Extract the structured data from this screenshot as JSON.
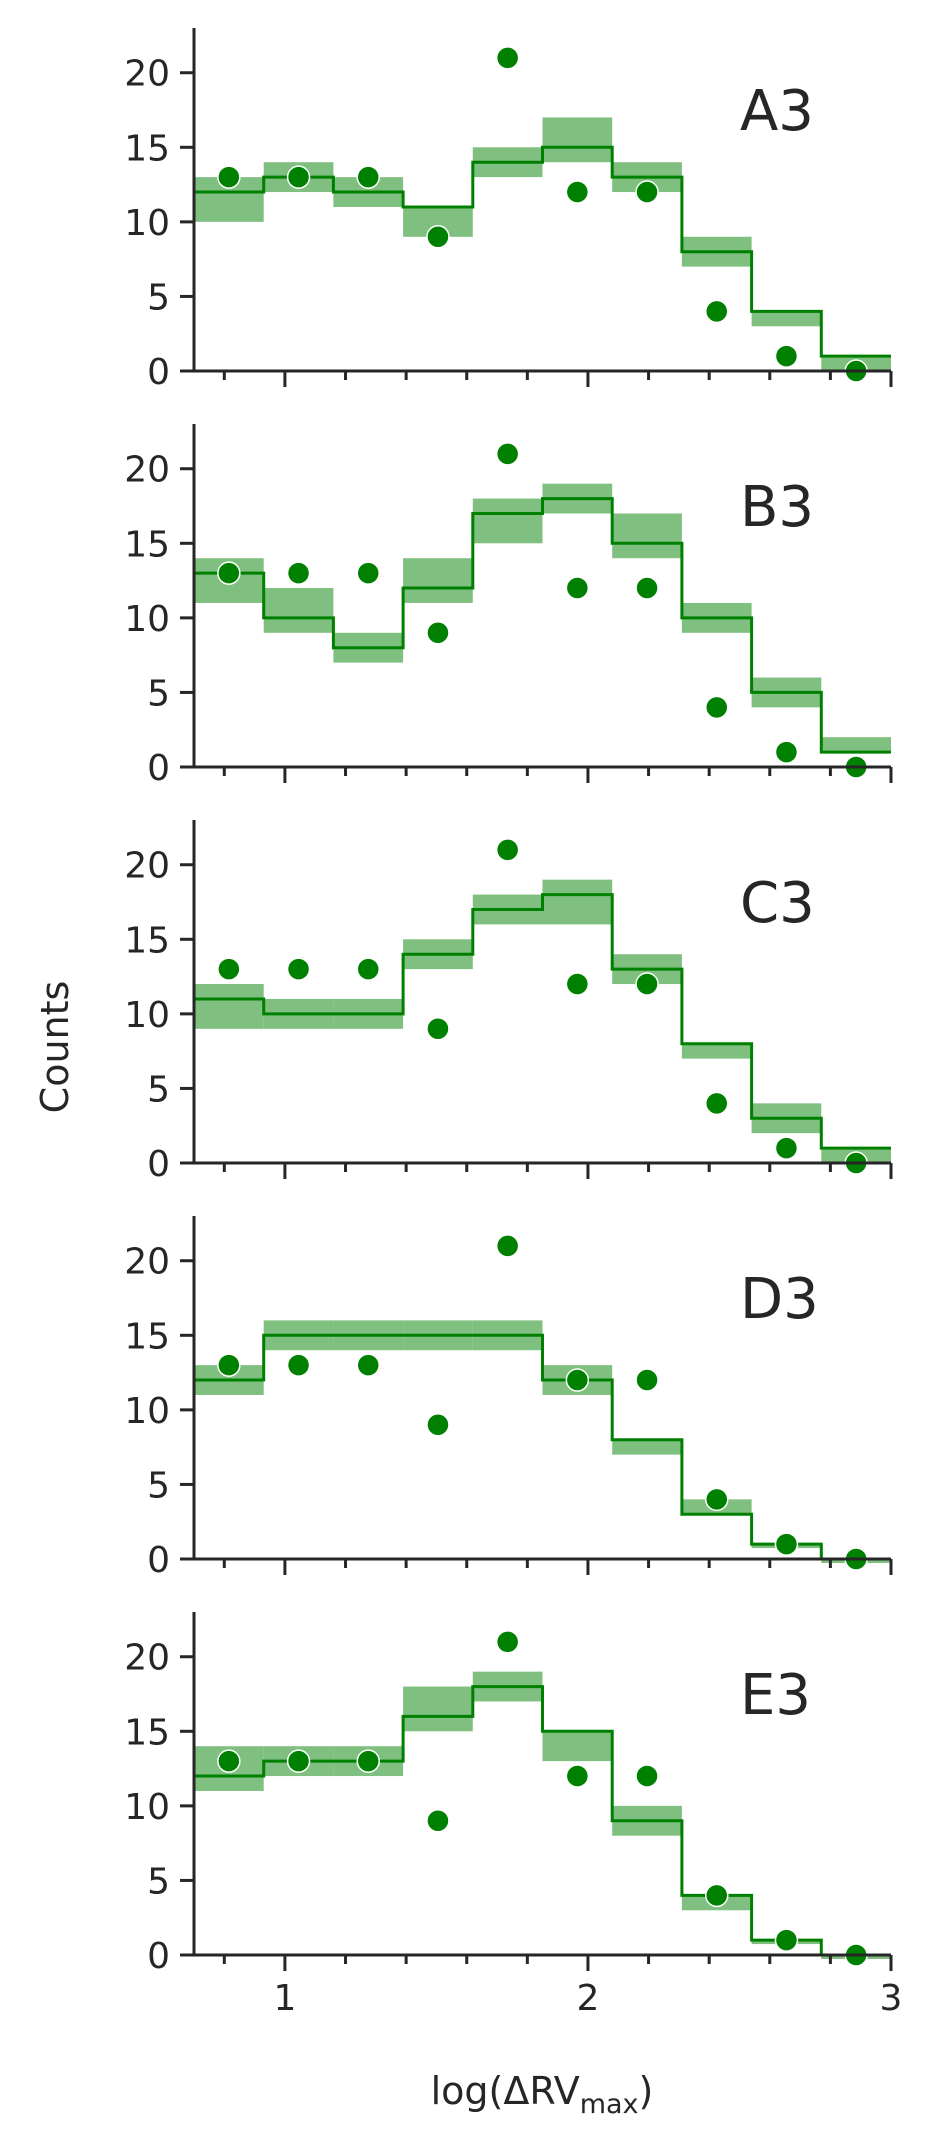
{
  "chart_data": {
    "type": "step-histogram-with-points",
    "xlabel": "log(ΔRV",
    "xlabel_sub": "max",
    "xlabel_close": ")",
    "ylabel": "Counts",
    "xlim": [
      0.7,
      3.0
    ],
    "ylim": [
      0,
      23
    ],
    "x_ticks": [
      "1",
      "2",
      "3"
    ],
    "y_ticks": [
      "0",
      "5",
      "10",
      "15",
      "20"
    ],
    "bin_edges": [
      0.7,
      0.93,
      1.16,
      1.39,
      1.62,
      1.85,
      2.08,
      2.31,
      2.54,
      2.77,
      3.0
    ],
    "observed_points": {
      "x": [
        0.815,
        1.045,
        1.275,
        1.505,
        1.735,
        1.965,
        2.195,
        2.425,
        2.655,
        2.885
      ],
      "y": [
        13,
        13,
        13,
        9,
        21,
        12,
        12,
        4,
        1,
        0
      ]
    },
    "colors": {
      "line": "#008000",
      "band": "#7fbf7f",
      "points": "#008000",
      "axes": "#262626"
    },
    "panels": [
      {
        "label": "A3",
        "model": [
          12,
          13,
          12,
          11,
          14,
          15,
          13,
          8,
          4,
          1
        ],
        "band_low": [
          10,
          12,
          11,
          9,
          13,
          14,
          12,
          7,
          3,
          0
        ],
        "band_high": [
          13,
          14,
          13,
          11,
          15,
          17,
          14,
          9,
          4,
          1
        ]
      },
      {
        "label": "B3",
        "model": [
          13,
          10,
          8,
          12,
          17,
          18,
          15,
          10,
          5,
          1
        ],
        "band_low": [
          11,
          9,
          7,
          11,
          15,
          17,
          14,
          9,
          4,
          1
        ],
        "band_high": [
          14,
          12,
          9,
          14,
          18,
          19,
          17,
          11,
          6,
          2
        ]
      },
      {
        "label": "C3",
        "model": [
          11,
          10,
          10,
          14,
          17,
          18,
          13,
          8,
          3,
          1
        ],
        "band_low": [
          9,
          9,
          9,
          13,
          16,
          16,
          12,
          7,
          2,
          0
        ],
        "band_high": [
          12,
          11,
          11,
          15,
          18,
          19,
          14,
          8,
          4,
          1
        ]
      },
      {
        "label": "D3",
        "model": [
          12,
          15,
          15,
          15,
          15,
          12,
          8,
          3,
          1,
          0
        ],
        "band_low": [
          11,
          14,
          14,
          14,
          14,
          11,
          7,
          3,
          1,
          0
        ],
        "band_high": [
          13,
          16,
          16,
          16,
          16,
          13,
          8,
          4,
          1,
          0
        ]
      },
      {
        "label": "E3",
        "model": [
          12,
          13,
          13,
          16,
          18,
          15,
          9,
          4,
          1,
          0
        ],
        "band_low": [
          11,
          12,
          12,
          15,
          17,
          13,
          8,
          3,
          1,
          0
        ],
        "band_high": [
          14,
          14,
          14,
          18,
          19,
          15,
          10,
          4,
          1,
          0
        ]
      }
    ]
  }
}
